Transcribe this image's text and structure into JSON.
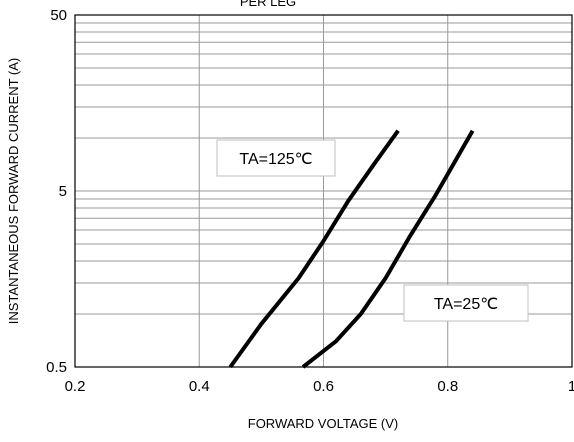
{
  "chart_data": {
    "type": "line",
    "title": "PER LEG",
    "xlabel": "FORWARD VOLTAGE (V)",
    "ylabel": "INSTANTANEOUS FORWARD CURRENT (A)",
    "xlim": [
      0.2,
      1.0
    ],
    "ylim": [
      0.5,
      50
    ],
    "yscale": "log",
    "grid": true,
    "x_ticks": [
      {
        "value": 0.2,
        "label": "0.2"
      },
      {
        "value": 0.4,
        "label": "0.4"
      },
      {
        "value": 0.6,
        "label": "0.6"
      },
      {
        "value": 0.8,
        "label": "0.8"
      },
      {
        "value": 1.0,
        "label": "1"
      }
    ],
    "y_ticks": [
      {
        "value": 0.5,
        "label": "0.5"
      },
      {
        "value": 5,
        "label": "5"
      },
      {
        "value": 50,
        "label": "50"
      }
    ],
    "series": [
      {
        "name": "TA=125℃",
        "color": "#000000",
        "x": [
          0.45,
          0.5,
          0.56,
          0.6,
          0.64,
          0.68,
          0.72
        ],
        "y": [
          0.5,
          0.88,
          1.6,
          2.6,
          4.4,
          7.0,
          11.0
        ]
      },
      {
        "name": "TA=25℃",
        "color": "#000000",
        "x": [
          0.567,
          0.62,
          0.66,
          0.7,
          0.74,
          0.78,
          0.84
        ],
        "y": [
          0.5,
          0.7,
          1.0,
          1.6,
          2.8,
          4.7,
          11.0
        ]
      }
    ],
    "annotations": [
      {
        "text": "TA=125℃",
        "series": 0
      },
      {
        "text": "TA=25℃",
        "series": 1
      }
    ]
  }
}
